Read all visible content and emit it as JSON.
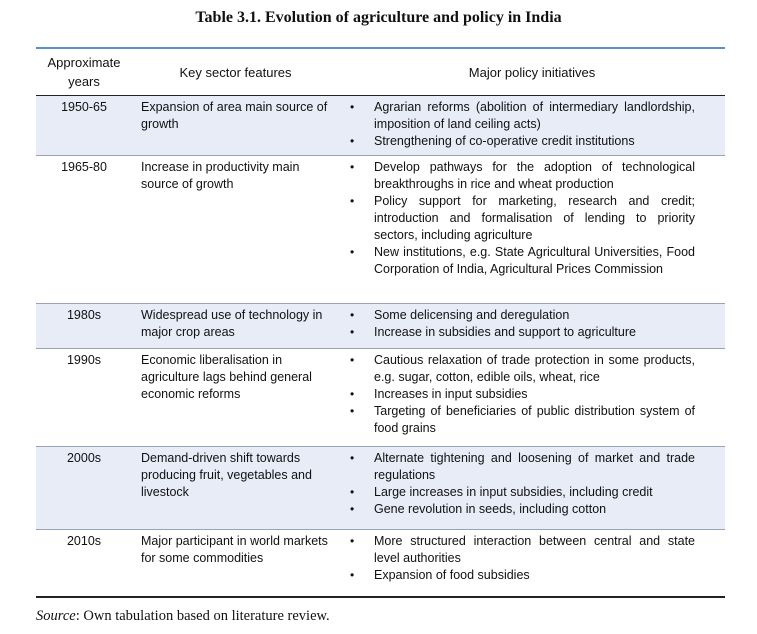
{
  "title": "Table 3.1. Evolution of agriculture and policy in India",
  "headers": {
    "years": "Approximate years",
    "features": "Key sector features",
    "policy": "Major policy initiatives"
  },
  "bullet": "•",
  "rows": [
    {
      "years": "1950-65",
      "features": "Expansion of area main source of growth",
      "policies": [
        "Agrarian reforms (abolition of intermediary landlordship, imposition of land ceiling acts)",
        "Strengthening of co-operative credit institutions"
      ]
    },
    {
      "years": "1965-80",
      "features": "Increase in productivity main source of growth",
      "policies": [
        "Develop pathways for the adoption of technological breakthroughs in rice and wheat production",
        "Policy support for marketing, research and credit; introduction and formalisation of lending to priority sectors, including agriculture",
        "New institutions, e.g. State Agricultural Universities, Food Corporation of India, Agricultural Prices Commission"
      ]
    },
    {
      "years": "1980s",
      "features": "Widespread use of technology in major crop areas",
      "policies": [
        "Some delicensing and deregulation",
        "Increase in subsidies and support to agriculture"
      ]
    },
    {
      "years": "1990s",
      "features": "Economic liberalisation in agriculture lags behind general economic reforms",
      "policies": [
        "Cautious relaxation of trade protection in some products, e.g. sugar, cotton, edible oils, wheat, rice",
        "Increases in input subsidies",
        "Targeting of beneficiaries of public distribution system of food grains"
      ]
    },
    {
      "years": "2000s",
      "features": "Demand-driven shift towards producing fruit, vegetables and livestock",
      "policies": [
        "Alternate tightening and loosening of market and trade regulations",
        "Large increases in input subsidies, including credit",
        "Gene revolution in seeds, including cotton"
      ]
    },
    {
      "years": "2010s",
      "features": "Major participant in world markets for some commodities",
      "policies": [
        "More structured interaction between central and state level authorities",
        "Expansion of food subsidies"
      ]
    }
  ],
  "source": {
    "label": "Source",
    "text": ": Own tabulation based on literature review."
  }
}
